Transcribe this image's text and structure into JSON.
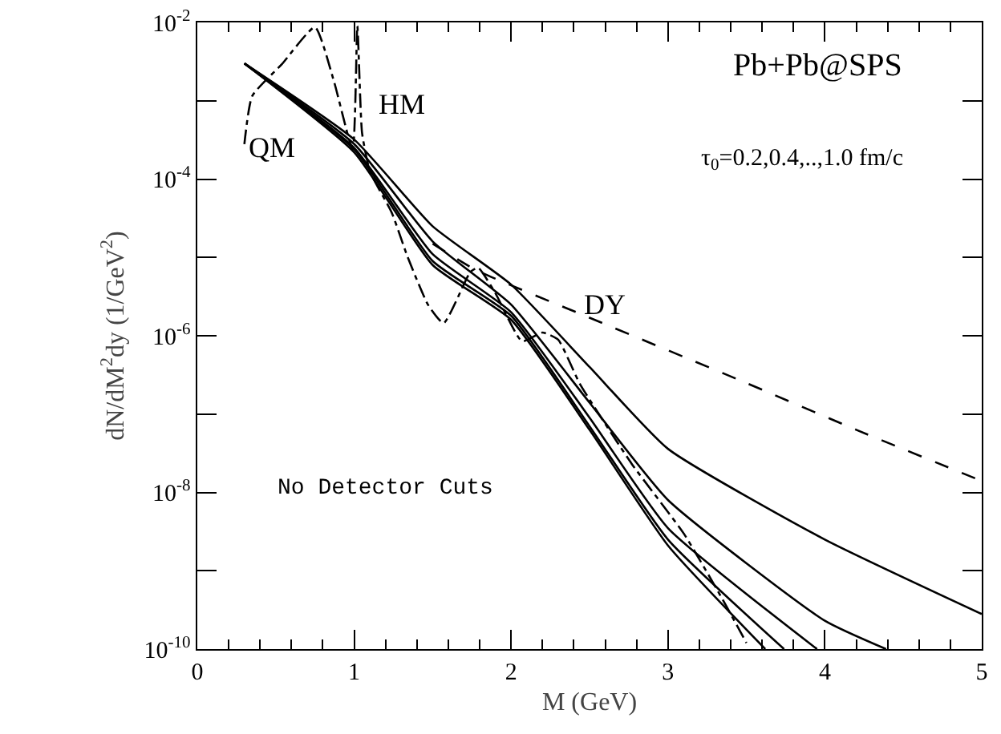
{
  "chart_data": {
    "type": "line",
    "xlabel": "M (GeV)",
    "ylabel": "dN/dM$^{2}$dy (1/GeV$^{2}$)",
    "log": "y",
    "grid": false,
    "marker": "none",
    "xlim": [
      0,
      5
    ],
    "xticks": [
      0,
      1,
      2,
      3,
      4,
      5
    ],
    "ylim": [
      1e-10,
      0.01
    ],
    "yticks": [
      {
        "value": 0.01,
        "label": "10$^{-2}$"
      },
      {
        "value": 0.001,
        "label": null
      },
      {
        "value": 0.0001,
        "label": "10$^{-4}$"
      },
      {
        "value": 1e-05,
        "label": null
      },
      {
        "value": 1e-06,
        "label": "10$^{-6}$"
      },
      {
        "value": 1e-07,
        "label": null
      },
      {
        "value": 1e-08,
        "label": "10$^{-8}$"
      },
      {
        "value": 1e-09,
        "label": null
      },
      {
        "value": 1e-10,
        "label": "10$^{-10}$"
      }
    ],
    "annotations": [
      "Pb+Pb@SPS",
      "τ$_{0}$=0.2,0.4,..,1.0 fm/c",
      "QM",
      "HM",
      "DY",
      "No Detector Cuts"
    ],
    "series": [
      {
        "color": "#000000",
        "line_style": "solid",
        "x": [
          0.3,
          1,
          1.5,
          2,
          2.5,
          3,
          4,
          5
        ],
        "values": [
          0.003,
          0.00032,
          2.5e-05,
          4.5e-06,
          4e-07,
          3.6e-08,
          2.5e-09,
          2.8e-10
        ]
      },
      {
        "color": "#000000",
        "line_style": "solid",
        "x": [
          0.3,
          1,
          1.5,
          2,
          2.5,
          3,
          4,
          4.39
        ],
        "values": [
          0.003,
          0.00028,
          1.6e-05,
          2.5e-06,
          1.4e-07,
          8e-09,
          2.3e-10,
          1e-10
        ]
      },
      {
        "color": "#000000",
        "line_style": "solid",
        "x": [
          0.3,
          1,
          1.5,
          2,
          2.5,
          3,
          3.95
        ],
        "values": [
          0.003,
          0.00025,
          1.1e-05,
          2e-06,
          9e-08,
          3.5e-09,
          1e-10
        ]
      },
      {
        "color": "#000000",
        "line_style": "solid",
        "x": [
          0.3,
          1,
          1.5,
          2,
          2.5,
          3,
          3.74
        ],
        "values": [
          0.003,
          0.00024,
          9e-06,
          1.8e-06,
          7e-08,
          2.5e-09,
          1e-10
        ]
      },
      {
        "color": "#000000",
        "line_style": "solid",
        "x": [
          0.3,
          1,
          1.5,
          2,
          2.5,
          3,
          3.62
        ],
        "values": [
          0.003,
          0.00022,
          8e-06,
          1.6e-06,
          6.3e-08,
          2.1e-09,
          1e-10
        ]
      },
      {
        "color": "#000000",
        "line_style": "dashed",
        "x": [
          1.5,
          1.77,
          2.5,
          3.44,
          4.2,
          5
        ],
        "values": [
          1.5e-05,
          7e-06,
          1.7e-06,
          2.8e-07,
          6.3e-08,
          1.4e-08
        ]
      },
      {
        "color": "#000000",
        "line_style": "dashdot",
        "x": [
          0.3,
          0.35,
          0.54,
          0.75,
          0.87,
          0.99,
          1.02,
          1.05,
          1.1,
          1.24,
          1.34,
          1.47,
          1.57,
          1.74,
          1.79,
          1.9,
          2.07,
          2.2,
          2.3,
          2.44,
          2.77,
          3.1,
          3.34,
          3.5
        ],
        "values": [
          0.00028,
          0.00115,
          0.00295,
          0.0087,
          0.0018,
          0.00024,
          0.009,
          0.00039,
          0.000126,
          3.7e-05,
          1.02e-05,
          2.5e-06,
          1.45e-06,
          6.5e-06,
          7.4e-06,
          3.5e-06,
          8.5e-07,
          1.1e-06,
          8.9e-07,
          2.4e-07,
          2.3e-08,
          3e-09,
          4.6e-10,
          1.2e-10
        ]
      }
    ]
  }
}
